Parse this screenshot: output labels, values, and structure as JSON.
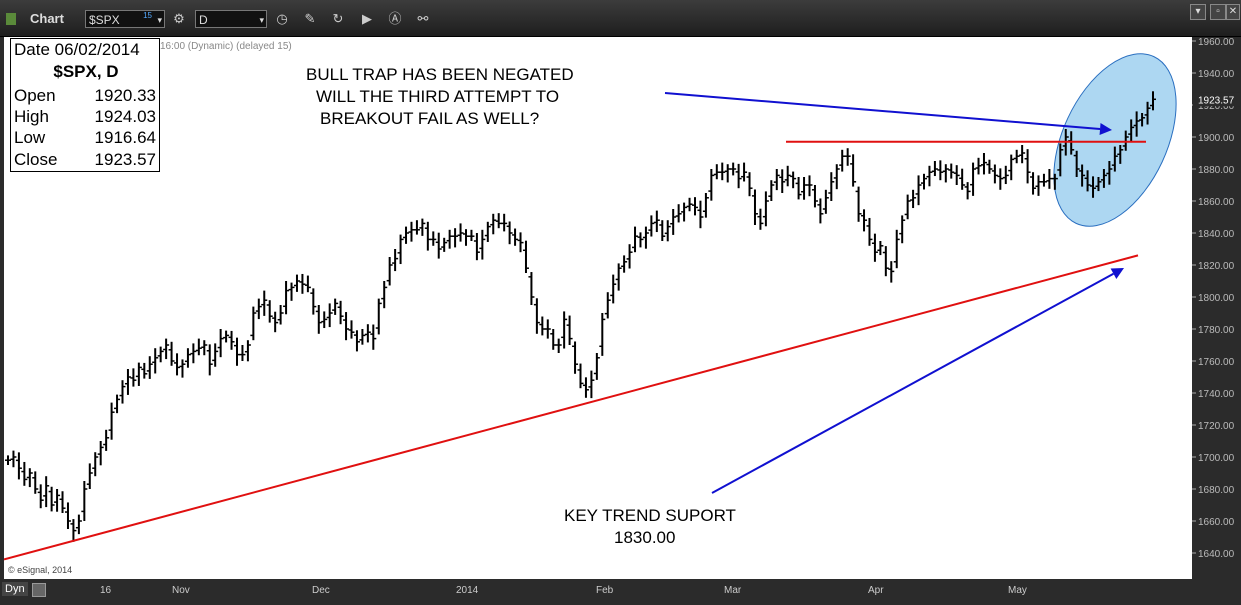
{
  "toolbar": {
    "window_title": "Chart",
    "symbol_value": "$SPX",
    "symbol_badge": "15",
    "interval_value": "D"
  },
  "info_box": {
    "date": "Date 06/02/2014",
    "title": "$SPX, D",
    "open_label": "Open",
    "open_value": "1920.33",
    "high_label": "High",
    "high_value": "1924.03",
    "low_label": "Low",
    "low_value": "1916.64",
    "close_label": "Close",
    "close_value": "1923.57"
  },
  "chart_status": "16:00 (Dynamic) (delayed 15)",
  "copyright": "© eSignal, 2014",
  "dyn_label": "Dyn",
  "annotations": {
    "top_note": [
      "BULL TRAP HAS BEEN NEGATED",
      "WILL THE THIRD ATTEMPT TO",
      "BREAKOUT FAIL AS WELL?"
    ],
    "bottom_note": [
      "KEY TREND SUPORT",
      "1830.00"
    ]
  },
  "colors": {
    "background": "#ffffff",
    "bars": "#000000",
    "trendline": "#e01010",
    "arrow": "#1010d0",
    "highlight_fill": "#9fd0f0",
    "highlight_stroke": "#2a6fc0"
  },
  "chart_data": {
    "type": "bar",
    "title": "$SPX, D",
    "xlabel": "",
    "ylabel": "",
    "ylim": [
      1630,
      1965
    ],
    "y_ticks": [
      "1960.00",
      "1940.00",
      "1920.00",
      "1900.00",
      "1880.00",
      "1860.00",
      "1840.00",
      "1820.00",
      "1800.00",
      "1780.00",
      "1760.00",
      "1740.00",
      "1720.00",
      "1700.00",
      "1680.00",
      "1660.00",
      "1640.00"
    ],
    "x_tick_labels": [
      "16",
      "Nov",
      "Dec",
      "2014",
      "Feb",
      "Mar",
      "Apr",
      "May"
    ],
    "last_price_label": "1923.57",
    "ohlc_series": [
      1698,
      1700,
      1693,
      1686,
      1690,
      1680,
      1673,
      1682,
      1670,
      1676,
      1668,
      1660,
      1654,
      1660,
      1680,
      1690,
      1700,
      1706,
      1712,
      1728,
      1736,
      1744,
      1750,
      1748,
      1756,
      1752,
      1758,
      1762,
      1766,
      1770,
      1760,
      1756,
      1758,
      1764,
      1766,
      1768,
      1770,
      1758,
      1766,
      1774,
      1776,
      1772,
      1764,
      1764,
      1770,
      1790,
      1794,
      1798,
      1788,
      1784,
      1790,
      1804,
      1806,
      1810,
      1808,
      1806,
      1794,
      1784,
      1786,
      1790,
      1796,
      1788,
      1780,
      1778,
      1772,
      1776,
      1778,
      1774,
      1796,
      1806,
      1820,
      1824,
      1836,
      1840,
      1842,
      1842,
      1846,
      1836,
      1836,
      1830,
      1834,
      1838,
      1838,
      1840,
      1838,
      1838,
      1828,
      1836,
      1844,
      1848,
      1846,
      1846,
      1840,
      1836,
      1834,
      1818,
      1800,
      1784,
      1780,
      1780,
      1770,
      1770,
      1786,
      1774,
      1758,
      1746,
      1742,
      1748,
      1762,
      1786,
      1798,
      1808,
      1818,
      1822,
      1828,
      1838,
      1836,
      1840,
      1846,
      1848,
      1838,
      1844,
      1850,
      1852,
      1856,
      1858,
      1856,
      1850,
      1862,
      1876,
      1878,
      1878,
      1880,
      1880,
      1874,
      1878,
      1868,
      1852,
      1846,
      1860,
      1870,
      1876,
      1872,
      1876,
      1874,
      1864,
      1870,
      1870,
      1860,
      1852,
      1862,
      1872,
      1880,
      1888,
      1888,
      1872,
      1852,
      1848,
      1836,
      1828,
      1832,
      1818,
      1816,
      1836,
      1848,
      1860,
      1862,
      1870,
      1874,
      1878,
      1880,
      1878,
      1880,
      1878,
      1876,
      1870,
      1866,
      1880,
      1882,
      1884,
      1880,
      1876,
      1874,
      1876,
      1886,
      1888,
      1890,
      1878,
      1868,
      1872,
      1872,
      1874,
      1874,
      1892,
      1900,
      1892,
      1880,
      1876,
      1870,
      1868,
      1872,
      1876,
      1880,
      1888,
      1892,
      1900,
      1906,
      1910,
      1912,
      1918,
      1923.57
    ],
    "trend_support_points": [
      {
        "x": "2013-10-09",
        "y": 1634
      },
      {
        "x": "2014-06-02",
        "y": 1826
      }
    ],
    "resistance_line": {
      "y": 1897,
      "from": "2014-03-01",
      "to": "2014-06-02"
    }
  }
}
